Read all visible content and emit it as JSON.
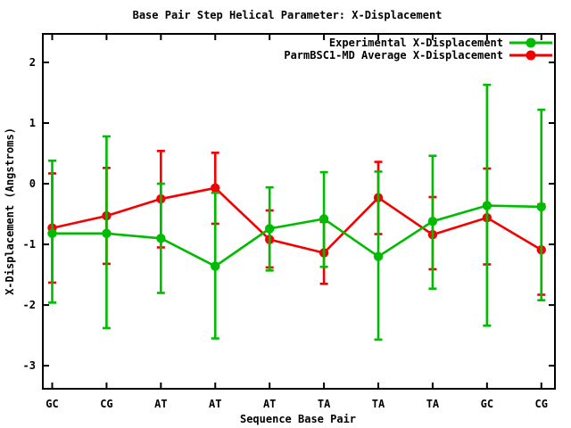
{
  "title": "Base Pair Step Helical Parameter: X-Displacement",
  "chart_data": {
    "type": "line",
    "title": "Base Pair Step Helical Parameter: X-Displacement",
    "xlabel": "Sequence Base Pair",
    "ylabel": "X-Displacement (Angstroms)",
    "categories": [
      "GC",
      "CG",
      "AT",
      "AT",
      "AT",
      "TA",
      "TA",
      "TA",
      "GC",
      "CG"
    ],
    "yticks": [
      2,
      1,
      0,
      -1,
      -2,
      -3
    ],
    "ylim": [
      -3.38,
      2.47
    ],
    "grid": false,
    "legend_position": "top-right-inside",
    "error_bars": true,
    "series": [
      {
        "name": "Experimental X-Displacement",
        "color": "#00bc00",
        "marker": "filled-circle",
        "values": [
          -0.82,
          -0.82,
          -0.9,
          -1.36,
          -0.74,
          -0.58,
          -1.2,
          -0.62,
          -0.36,
          -0.38
        ],
        "err_top": [
          0.38,
          0.78,
          0.0,
          -0.15,
          -0.06,
          0.19,
          0.2,
          0.46,
          1.63,
          1.22
        ],
        "err_bottom": [
          -1.96,
          -2.38,
          -1.8,
          -2.55,
          -1.43,
          -1.37,
          -2.57,
          -1.73,
          -2.34,
          -1.92
        ]
      },
      {
        "name": "ParmBSC1-MD Average X-Displacement",
        "color": "#f30000",
        "marker": "filled-circle",
        "values": [
          -0.73,
          -0.53,
          -0.25,
          -0.07,
          -0.92,
          -1.14,
          -0.23,
          -0.84,
          -0.56,
          -1.09
        ],
        "err_top": [
          0.17,
          0.26,
          0.54,
          0.51,
          -0.44,
          -0.63,
          0.36,
          -0.22,
          0.25,
          -0.34
        ],
        "err_bottom": [
          -1.63,
          -1.32,
          -1.05,
          -0.66,
          -1.38,
          -1.65,
          -0.83,
          -1.41,
          -1.33,
          -1.83
        ]
      }
    ],
    "frame_color": "#000000",
    "text_color": "#000000"
  }
}
